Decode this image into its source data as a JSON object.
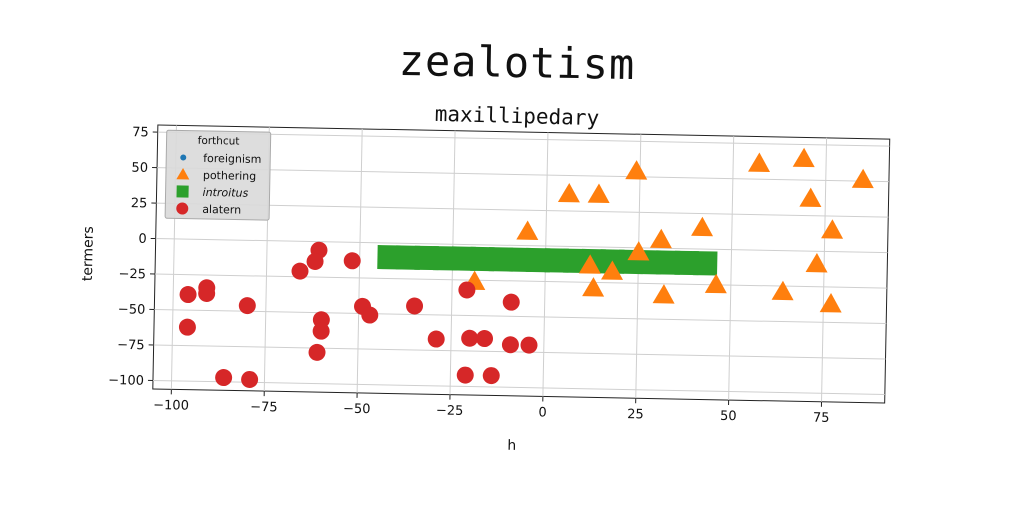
{
  "chart_data": {
    "type": "scatter",
    "title": "zealotism",
    "subtitle": "maxillipedary",
    "xlabel": "h",
    "ylabel": "termers",
    "xlim": [
      -105,
      92
    ],
    "ylim": [
      -106,
      80
    ],
    "xticks": [
      -100,
      -75,
      -50,
      -25,
      0,
      25,
      50,
      75
    ],
    "yticks": [
      75,
      50,
      25,
      0,
      -25,
      -50,
      -75,
      -100
    ],
    "grid": true,
    "legend": {
      "title": "forthcut",
      "position": "top-left"
    },
    "series": [
      {
        "name": "foreignism",
        "marker": "dot",
        "color": "#1f77b4",
        "points": [
          [
            0,
            -15
          ],
          [
            4,
            -14
          ],
          [
            8,
            -13
          ],
          [
            12,
            -12
          ],
          [
            16,
            -12
          ],
          [
            20,
            -11
          ],
          [
            24,
            -10
          ],
          [
            30,
            -10
          ],
          [
            36,
            -9
          ]
        ]
      },
      {
        "name": "pothering",
        "marker": "triangle",
        "color": "#ff7f0e",
        "points": [
          [
            57,
            61
          ],
          [
            69,
            65
          ],
          [
            85,
            51
          ],
          [
            24,
            54
          ],
          [
            71,
            37
          ],
          [
            6,
            37
          ],
          [
            14,
            37
          ],
          [
            77,
            15
          ],
          [
            42,
            15
          ],
          [
            -5,
            10
          ],
          [
            31,
            6
          ],
          [
            25,
            -3
          ],
          [
            73,
            -9
          ],
          [
            12,
            -13
          ],
          [
            18,
            -17
          ],
          [
            46,
            -25
          ],
          [
            -19,
            -26
          ],
          [
            13,
            -29
          ],
          [
            64,
            -29
          ],
          [
            32,
            -33
          ],
          [
            77,
            -37
          ]
        ]
      },
      {
        "name": "introitus",
        "marker": "square",
        "color": "#2ca02c",
        "points": [
          [
            -42,
            -10
          ],
          [
            -37,
            -10
          ],
          [
            -32,
            -10
          ],
          [
            -27,
            -10
          ],
          [
            -22,
            -10
          ],
          [
            -17,
            -10
          ],
          [
            -12,
            -10
          ],
          [
            -7,
            -10
          ],
          [
            -2,
            -10
          ],
          [
            3,
            -10
          ],
          [
            8,
            -10
          ],
          [
            13,
            -10
          ],
          [
            18,
            -10
          ],
          [
            23,
            -10
          ],
          [
            28,
            -10
          ],
          [
            33,
            -10
          ],
          [
            38,
            -10
          ],
          [
            43,
            -10
          ]
        ]
      },
      {
        "name": "alatern",
        "marker": "circle",
        "color": "#d62728",
        "points": [
          [
            -61,
            -6
          ],
          [
            -62,
            -14
          ],
          [
            -52,
            -13
          ],
          [
            -66,
            -21
          ],
          [
            -21,
            -32
          ],
          [
            -91,
            -34
          ],
          [
            -96,
            -39
          ],
          [
            -91,
            -38
          ],
          [
            -9,
            -40
          ],
          [
            -80,
            -46
          ],
          [
            -49,
            -45
          ],
          [
            -35,
            -44
          ],
          [
            -47,
            -51
          ],
          [
            -60,
            -55
          ],
          [
            -60,
            -63
          ],
          [
            -96,
            -62
          ],
          [
            -29,
            -67
          ],
          [
            -20,
            -66
          ],
          [
            -16,
            -66
          ],
          [
            -9,
            -70
          ],
          [
            -4,
            -70
          ],
          [
            -61,
            -78
          ],
          [
            -21,
            -92
          ],
          [
            -14,
            -92
          ],
          [
            -86,
            -97
          ],
          [
            -79,
            -98
          ]
        ]
      }
    ]
  }
}
